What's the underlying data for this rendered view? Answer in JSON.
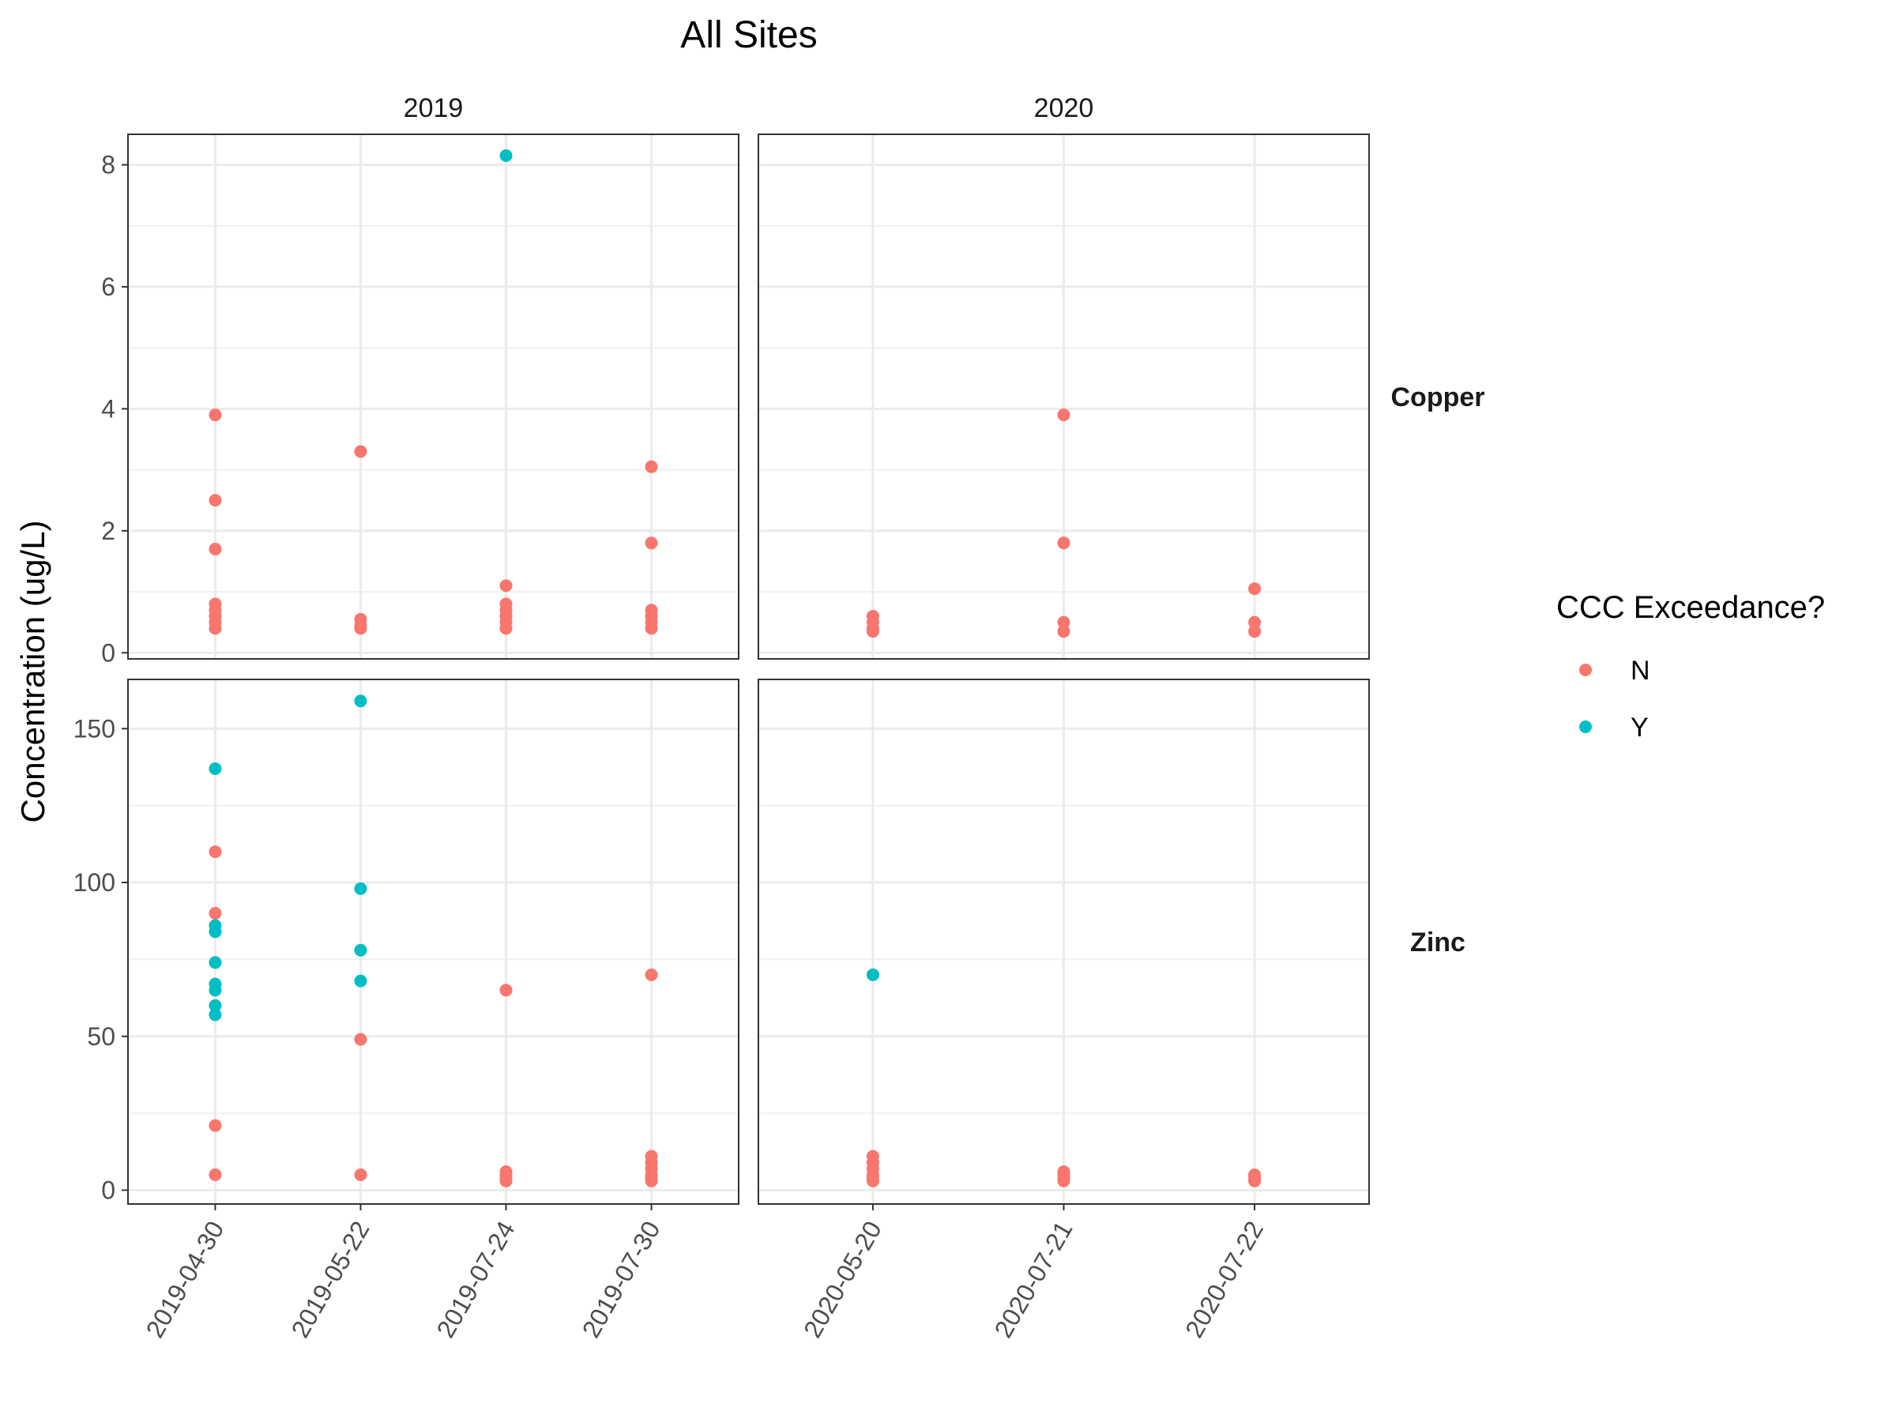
{
  "chart_data": {
    "type": "scatter",
    "title": "All Sites",
    "ylabel": "Concentration (ug/L)",
    "xlabel": "",
    "legend": {
      "title": "CCC Exceedance?",
      "position": "right",
      "entries": [
        {
          "label": "N",
          "color": "#F8766D"
        },
        {
          "label": "Y",
          "color": "#00BFC4"
        }
      ]
    },
    "grid": true,
    "columns": [
      {
        "label": "2019",
        "dates": [
          "2019-04-30",
          "2019-05-22",
          "2019-07-24",
          "2019-07-30"
        ]
      },
      {
        "label": "2020",
        "dates": [
          "2020-05-20",
          "2020-07-21",
          "2020-07-22"
        ]
      }
    ],
    "rows": [
      {
        "label": "Copper",
        "ylim": [
          -0.1,
          8.5
        ],
        "ticks": [
          0,
          2,
          4,
          6,
          8
        ]
      },
      {
        "label": "Zinc",
        "ylim": [
          -4.5,
          166
        ],
        "ticks": [
          0,
          50,
          100,
          150
        ]
      }
    ],
    "points": [
      {
        "row": 0,
        "col": 0,
        "x": "2019-04-30",
        "y": 3.9,
        "flag": "N"
      },
      {
        "row": 0,
        "col": 0,
        "x": "2019-04-30",
        "y": 2.5,
        "flag": "N"
      },
      {
        "row": 0,
        "col": 0,
        "x": "2019-04-30",
        "y": 1.7,
        "flag": "N"
      },
      {
        "row": 0,
        "col": 0,
        "x": "2019-04-30",
        "y": 0.8,
        "flag": "N"
      },
      {
        "row": 0,
        "col": 0,
        "x": "2019-04-30",
        "y": 0.7,
        "flag": "N"
      },
      {
        "row": 0,
        "col": 0,
        "x": "2019-04-30",
        "y": 0.6,
        "flag": "N"
      },
      {
        "row": 0,
        "col": 0,
        "x": "2019-04-30",
        "y": 0.5,
        "flag": "N"
      },
      {
        "row": 0,
        "col": 0,
        "x": "2019-04-30",
        "y": 0.4,
        "flag": "N"
      },
      {
        "row": 0,
        "col": 0,
        "x": "2019-05-22",
        "y": 3.3,
        "flag": "N"
      },
      {
        "row": 0,
        "col": 0,
        "x": "2019-05-22",
        "y": 0.55,
        "flag": "N"
      },
      {
        "row": 0,
        "col": 0,
        "x": "2019-05-22",
        "y": 0.45,
        "flag": "N"
      },
      {
        "row": 0,
        "col": 0,
        "x": "2019-05-22",
        "y": 0.4,
        "flag": "N"
      },
      {
        "row": 0,
        "col": 0,
        "x": "2019-07-24",
        "y": 8.15,
        "flag": "Y"
      },
      {
        "row": 0,
        "col": 0,
        "x": "2019-07-24",
        "y": 1.1,
        "flag": "N"
      },
      {
        "row": 0,
        "col": 0,
        "x": "2019-07-24",
        "y": 0.8,
        "flag": "N"
      },
      {
        "row": 0,
        "col": 0,
        "x": "2019-07-24",
        "y": 0.7,
        "flag": "N"
      },
      {
        "row": 0,
        "col": 0,
        "x": "2019-07-24",
        "y": 0.6,
        "flag": "N"
      },
      {
        "row": 0,
        "col": 0,
        "x": "2019-07-24",
        "y": 0.5,
        "flag": "N"
      },
      {
        "row": 0,
        "col": 0,
        "x": "2019-07-24",
        "y": 0.4,
        "flag": "N"
      },
      {
        "row": 0,
        "col": 0,
        "x": "2019-07-30",
        "y": 3.05,
        "flag": "N"
      },
      {
        "row": 0,
        "col": 0,
        "x": "2019-07-30",
        "y": 1.8,
        "flag": "N"
      },
      {
        "row": 0,
        "col": 0,
        "x": "2019-07-30",
        "y": 0.7,
        "flag": "N"
      },
      {
        "row": 0,
        "col": 0,
        "x": "2019-07-30",
        "y": 0.6,
        "flag": "N"
      },
      {
        "row": 0,
        "col": 0,
        "x": "2019-07-30",
        "y": 0.5,
        "flag": "N"
      },
      {
        "row": 0,
        "col": 0,
        "x": "2019-07-30",
        "y": 0.4,
        "flag": "N"
      },
      {
        "row": 0,
        "col": 1,
        "x": "2020-05-20",
        "y": 0.6,
        "flag": "N"
      },
      {
        "row": 0,
        "col": 1,
        "x": "2020-05-20",
        "y": 0.5,
        "flag": "N"
      },
      {
        "row": 0,
        "col": 1,
        "x": "2020-05-20",
        "y": 0.4,
        "flag": "N"
      },
      {
        "row": 0,
        "col": 1,
        "x": "2020-05-20",
        "y": 0.35,
        "flag": "N"
      },
      {
        "row": 0,
        "col": 1,
        "x": "2020-07-21",
        "y": 3.9,
        "flag": "N"
      },
      {
        "row": 0,
        "col": 1,
        "x": "2020-07-21",
        "y": 1.8,
        "flag": "N"
      },
      {
        "row": 0,
        "col": 1,
        "x": "2020-07-21",
        "y": 0.5,
        "flag": "N"
      },
      {
        "row": 0,
        "col": 1,
        "x": "2020-07-21",
        "y": 0.35,
        "flag": "N"
      },
      {
        "row": 0,
        "col": 1,
        "x": "2020-07-22",
        "y": 1.05,
        "flag": "N"
      },
      {
        "row": 0,
        "col": 1,
        "x": "2020-07-22",
        "y": 0.5,
        "flag": "N"
      },
      {
        "row": 0,
        "col": 1,
        "x": "2020-07-22",
        "y": 0.35,
        "flag": "N"
      },
      {
        "row": 1,
        "col": 0,
        "x": "2019-04-30",
        "y": 137,
        "flag": "Y"
      },
      {
        "row": 1,
        "col": 0,
        "x": "2019-04-30",
        "y": 110,
        "flag": "N"
      },
      {
        "row": 1,
        "col": 0,
        "x": "2019-04-30",
        "y": 90,
        "flag": "N"
      },
      {
        "row": 1,
        "col": 0,
        "x": "2019-04-30",
        "y": 86,
        "flag": "Y"
      },
      {
        "row": 1,
        "col": 0,
        "x": "2019-04-30",
        "y": 84,
        "flag": "Y"
      },
      {
        "row": 1,
        "col": 0,
        "x": "2019-04-30",
        "y": 74,
        "flag": "Y"
      },
      {
        "row": 1,
        "col": 0,
        "x": "2019-04-30",
        "y": 67,
        "flag": "Y"
      },
      {
        "row": 1,
        "col": 0,
        "x": "2019-04-30",
        "y": 65,
        "flag": "Y"
      },
      {
        "row": 1,
        "col": 0,
        "x": "2019-04-30",
        "y": 60,
        "flag": "Y"
      },
      {
        "row": 1,
        "col": 0,
        "x": "2019-04-30",
        "y": 57,
        "flag": "Y"
      },
      {
        "row": 1,
        "col": 0,
        "x": "2019-04-30",
        "y": 21,
        "flag": "N"
      },
      {
        "row": 1,
        "col": 0,
        "x": "2019-04-30",
        "y": 5,
        "flag": "N"
      },
      {
        "row": 1,
        "col": 0,
        "x": "2019-05-22",
        "y": 159,
        "flag": "Y"
      },
      {
        "row": 1,
        "col": 0,
        "x": "2019-05-22",
        "y": 98,
        "flag": "Y"
      },
      {
        "row": 1,
        "col": 0,
        "x": "2019-05-22",
        "y": 78,
        "flag": "Y"
      },
      {
        "row": 1,
        "col": 0,
        "x": "2019-05-22",
        "y": 68,
        "flag": "Y"
      },
      {
        "row": 1,
        "col": 0,
        "x": "2019-05-22",
        "y": 49,
        "flag": "N"
      },
      {
        "row": 1,
        "col": 0,
        "x": "2019-05-22",
        "y": 5,
        "flag": "N"
      },
      {
        "row": 1,
        "col": 0,
        "x": "2019-07-24",
        "y": 65,
        "flag": "N"
      },
      {
        "row": 1,
        "col": 0,
        "x": "2019-07-24",
        "y": 6,
        "flag": "N"
      },
      {
        "row": 1,
        "col": 0,
        "x": "2019-07-24",
        "y": 5,
        "flag": "N"
      },
      {
        "row": 1,
        "col": 0,
        "x": "2019-07-24",
        "y": 4,
        "flag": "N"
      },
      {
        "row": 1,
        "col": 0,
        "x": "2019-07-24",
        "y": 3,
        "flag": "N"
      },
      {
        "row": 1,
        "col": 0,
        "x": "2019-07-30",
        "y": 70,
        "flag": "N"
      },
      {
        "row": 1,
        "col": 0,
        "x": "2019-07-30",
        "y": 11,
        "flag": "N"
      },
      {
        "row": 1,
        "col": 0,
        "x": "2019-07-30",
        "y": 9,
        "flag": "N"
      },
      {
        "row": 1,
        "col": 0,
        "x": "2019-07-30",
        "y": 7,
        "flag": "N"
      },
      {
        "row": 1,
        "col": 0,
        "x": "2019-07-30",
        "y": 5,
        "flag": "N"
      },
      {
        "row": 1,
        "col": 0,
        "x": "2019-07-30",
        "y": 4,
        "flag": "N"
      },
      {
        "row": 1,
        "col": 0,
        "x": "2019-07-30",
        "y": 3,
        "flag": "N"
      },
      {
        "row": 1,
        "col": 1,
        "x": "2020-05-20",
        "y": 70,
        "flag": "Y"
      },
      {
        "row": 1,
        "col": 1,
        "x": "2020-05-20",
        "y": 11,
        "flag": "N"
      },
      {
        "row": 1,
        "col": 1,
        "x": "2020-05-20",
        "y": 9,
        "flag": "N"
      },
      {
        "row": 1,
        "col": 1,
        "x": "2020-05-20",
        "y": 7,
        "flag": "N"
      },
      {
        "row": 1,
        "col": 1,
        "x": "2020-05-20",
        "y": 5,
        "flag": "N"
      },
      {
        "row": 1,
        "col": 1,
        "x": "2020-05-20",
        "y": 4,
        "flag": "N"
      },
      {
        "row": 1,
        "col": 1,
        "x": "2020-05-20",
        "y": 3,
        "flag": "N"
      },
      {
        "row": 1,
        "col": 1,
        "x": "2020-07-21",
        "y": 6,
        "flag": "N"
      },
      {
        "row": 1,
        "col": 1,
        "x": "2020-07-21",
        "y": 5,
        "flag": "N"
      },
      {
        "row": 1,
        "col": 1,
        "x": "2020-07-21",
        "y": 4,
        "flag": "N"
      },
      {
        "row": 1,
        "col": 1,
        "x": "2020-07-21",
        "y": 3,
        "flag": "N"
      },
      {
        "row": 1,
        "col": 1,
        "x": "2020-07-22",
        "y": 5,
        "flag": "N"
      },
      {
        "row": 1,
        "col": 1,
        "x": "2020-07-22",
        "y": 4,
        "flag": "N"
      },
      {
        "row": 1,
        "col": 1,
        "x": "2020-07-22",
        "y": 3,
        "flag": "N"
      }
    ]
  }
}
